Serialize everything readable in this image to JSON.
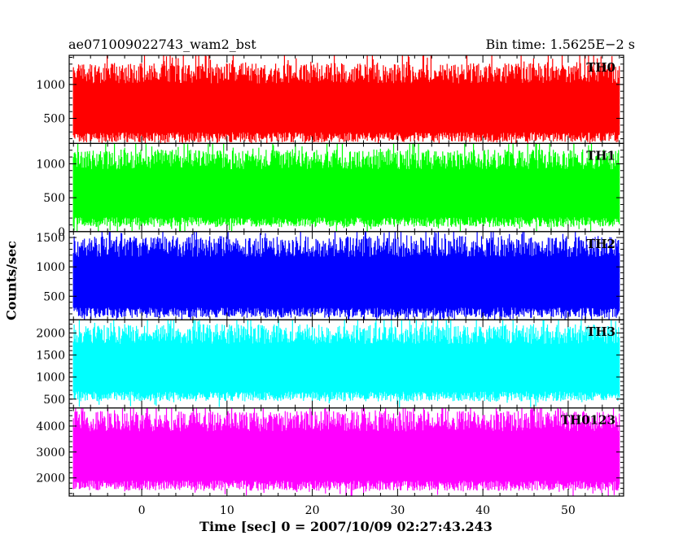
{
  "header": {
    "source": "ae071009022743_wam2_bst",
    "bin_time": "Bin time: 1.5625E−2 s"
  },
  "chart_data": {
    "type": "line",
    "xlabel": "Time [sec] 0 = 2007/10/09 02:27:43.243",
    "ylabel": "Counts/sec",
    "xlim": [
      -8.5,
      56.5
    ],
    "data_x_range": [
      -8,
      56
    ],
    "xticks": [
      0,
      10,
      20,
      30,
      40,
      50
    ],
    "grid": false,
    "legend": "none",
    "panels": [
      {
        "name": "TH0",
        "color": "#ff0000",
        "ylim": [
          130,
          1430
        ],
        "yticks": [
          500,
          1000
        ],
        "ytick_labels": [
          "500",
          "1000"
        ],
        "baseline": 600,
        "max_mean": 1150,
        "min_mean": 220
      },
      {
        "name": "TH1",
        "color": "#00ff00",
        "ylim": [
          0,
          1300
        ],
        "yticks": [
          0,
          500,
          1000
        ],
        "ytick_labels": [
          "0",
          "500",
          "1000"
        ],
        "baseline": 500,
        "max_mean": 1050,
        "min_mean": 140
      },
      {
        "name": "TH2",
        "color": "#0000ff",
        "ylim": [
          100,
          1600
        ],
        "yticks": [
          500,
          1000,
          1500
        ],
        "ytick_labels": [
          "500",
          "1000",
          "1500"
        ],
        "baseline": 700,
        "max_mean": 1330,
        "min_mean": 220
      },
      {
        "name": "TH3",
        "color": "#00ffff",
        "ylim": [
          300,
          2300
        ],
        "yticks": [
          500,
          1000,
          1500,
          2000
        ],
        "ytick_labels": [
          "500",
          "1000",
          "1500",
          "2000"
        ],
        "baseline": 1050,
        "max_mean": 1950,
        "min_mean": 560
      },
      {
        "name": "TH0123",
        "color": "#ff00ff",
        "ylim": [
          1300,
          4700
        ],
        "yticks": [
          2000,
          3000,
          4000
        ],
        "ytick_labels": [
          "2000",
          "3000",
          "4000"
        ],
        "baseline": 2700,
        "max_mean": 4150,
        "min_mean": 1700
      }
    ]
  }
}
